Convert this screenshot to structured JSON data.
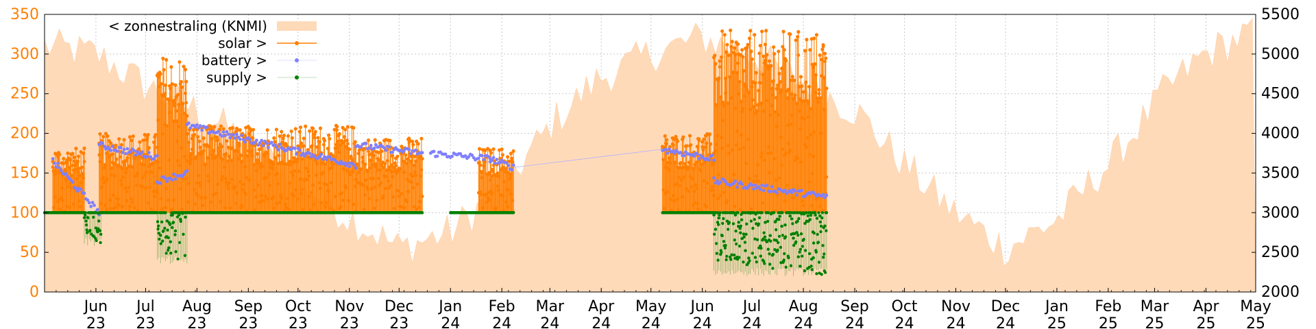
{
  "chart_data": {
    "type": "area",
    "left_axis": {
      "min": 0,
      "max": 350,
      "ticks": [
        "0",
        "50",
        "100",
        "150",
        "200",
        "250",
        "300",
        "350"
      ],
      "color": "#ff7f00"
    },
    "right_axis": {
      "min": 2000,
      "max": 5500,
      "ticks": [
        "2000",
        "2500",
        "3000",
        "3500",
        "4000",
        "4500",
        "5000",
        "5500"
      ],
      "color": "#000000"
    },
    "x_labels": [
      {
        "month": "Jun",
        "year": "23"
      },
      {
        "month": "Jul",
        "year": "23"
      },
      {
        "month": "Aug",
        "year": "23"
      },
      {
        "month": "Sep",
        "year": "23"
      },
      {
        "month": "Oct",
        "year": "23"
      },
      {
        "month": "Nov",
        "year": "23"
      },
      {
        "month": "Dec",
        "year": "23"
      },
      {
        "month": "Jan",
        "year": "24"
      },
      {
        "month": "Feb",
        "year": "24"
      },
      {
        "month": "Mar",
        "year": "24"
      },
      {
        "month": "Apr",
        "year": "24"
      },
      {
        "month": "May",
        "year": "24"
      },
      {
        "month": "Jun",
        "year": "24"
      },
      {
        "month": "Jul",
        "year": "24"
      },
      {
        "month": "Aug",
        "year": "24"
      },
      {
        "month": "Sep",
        "year": "24"
      },
      {
        "month": "Oct",
        "year": "24"
      },
      {
        "month": "Nov",
        "year": "24"
      },
      {
        "month": "Dec",
        "year": "24"
      },
      {
        "month": "Jan",
        "year": "25"
      },
      {
        "month": "Feb",
        "year": "25"
      },
      {
        "month": "Mar",
        "year": "25"
      },
      {
        "month": "Apr",
        "year": "25"
      },
      {
        "month": "May",
        "year": "25"
      }
    ],
    "grid": true,
    "legend_position": "top-left",
    "series": [
      {
        "name": "< zonnestraling (KNMI)",
        "color": "#ffdab9",
        "style": "area",
        "axis": "right"
      },
      {
        "name": "solar >",
        "color": "#ff7f00",
        "style": "linespoints",
        "axis": "left"
      },
      {
        "name": "battery >",
        "color": "#8080ff",
        "style": "points",
        "axis": "left"
      },
      {
        "name": "supply >",
        "color": "#008000",
        "style": "points",
        "axis": "left"
      }
    ],
    "zonnestraling_monthly": [
      {
        "month": "2023-05",
        "value": 5100
      },
      {
        "month": "2023-06",
        "value": 5000
      },
      {
        "month": "2023-07",
        "value": 4600
      },
      {
        "month": "2023-08",
        "value": 4300
      },
      {
        "month": "2023-09",
        "value": 3900
      },
      {
        "month": "2023-10",
        "value": 3400
      },
      {
        "month": "2023-11",
        "value": 2950
      },
      {
        "month": "2023-12",
        "value": 2550
      },
      {
        "month": "2024-01",
        "value": 2750
      },
      {
        "month": "2024-02",
        "value": 3300
      },
      {
        "month": "2024-03",
        "value": 4100
      },
      {
        "month": "2024-04",
        "value": 4700
      },
      {
        "month": "2024-05",
        "value": 5000
      },
      {
        "month": "2024-06",
        "value": 5200
      },
      {
        "month": "2024-07",
        "value": 5000
      },
      {
        "month": "2024-08",
        "value": 4650
      },
      {
        "month": "2024-09",
        "value": 4300
      },
      {
        "month": "2024-10",
        "value": 3600
      },
      {
        "month": "2024-11",
        "value": 3000
      },
      {
        "month": "2024-12",
        "value": 2550
      },
      {
        "month": "2025-01",
        "value": 2900
      },
      {
        "month": "2025-02",
        "value": 3600
      },
      {
        "month": "2025-03",
        "value": 4400
      },
      {
        "month": "2025-04",
        "value": 5000
      },
      {
        "month": "2025-05",
        "value": 5300
      }
    ],
    "solar_segments": [
      {
        "start": "2023-05-06",
        "end": "2023-05-25",
        "min": 100,
        "max": 182
      },
      {
        "start": "2023-06-03",
        "end": "2023-07-08",
        "min": 100,
        "max": 200
      },
      {
        "start": "2023-07-08",
        "end": "2023-07-26",
        "min": 100,
        "max": 298
      },
      {
        "start": "2023-07-26",
        "end": "2023-11-05",
        "min": 100,
        "max": 210
      },
      {
        "start": "2023-11-05",
        "end": "2023-12-15",
        "min": 100,
        "max": 195
      },
      {
        "start": "2024-01-18",
        "end": "2024-02-08",
        "min": 100,
        "max": 182
      },
      {
        "start": "2024-05-08",
        "end": "2024-06-08",
        "min": 100,
        "max": 200
      },
      {
        "start": "2024-06-08",
        "end": "2024-08-15",
        "min": 100,
        "max": 330
      }
    ],
    "battery_segments": [
      {
        "start": "2023-05-06",
        "end": "2023-06-03",
        "from": 165,
        "to": 100
      },
      {
        "start": "2023-06-03",
        "end": "2023-07-08",
        "from": 185,
        "to": 170
      },
      {
        "start": "2023-07-08",
        "end": "2023-07-26",
        "from": 140,
        "to": 150
      },
      {
        "start": "2023-07-26",
        "end": "2023-11-05",
        "from": 210,
        "to": 160
      },
      {
        "start": "2023-11-05",
        "end": "2023-12-15",
        "from": 185,
        "to": 175
      },
      {
        "start": "2023-12-20",
        "end": "2024-01-25",
        "from": 175,
        "to": 168
      },
      {
        "start": "2024-01-25",
        "end": "2024-02-08",
        "from": 168,
        "to": 157
      },
      {
        "start": "2024-05-08",
        "end": "2024-06-08",
        "from": 180,
        "to": 168
      },
      {
        "start": "2024-06-08",
        "end": "2024-08-15",
        "from": 140,
        "to": 120
      }
    ],
    "supply_segments": [
      {
        "start": "2023-05-01",
        "end": "2023-05-25",
        "low": 100,
        "high": 100
      },
      {
        "start": "2023-05-25",
        "end": "2023-06-04",
        "low": 58,
        "high": 100
      },
      {
        "start": "2023-06-04",
        "end": "2023-07-08",
        "low": 100,
        "high": 100
      },
      {
        "start": "2023-07-08",
        "end": "2023-07-26",
        "low": 35,
        "high": 100
      },
      {
        "start": "2023-07-26",
        "end": "2023-12-15",
        "low": 100,
        "high": 100
      },
      {
        "start": "2024-01-01",
        "end": "2024-02-08",
        "low": 100,
        "high": 100
      },
      {
        "start": "2024-05-08",
        "end": "2024-06-08",
        "low": 100,
        "high": 100
      },
      {
        "start": "2024-06-08",
        "end": "2024-08-15",
        "low": 20,
        "high": 100
      }
    ]
  }
}
